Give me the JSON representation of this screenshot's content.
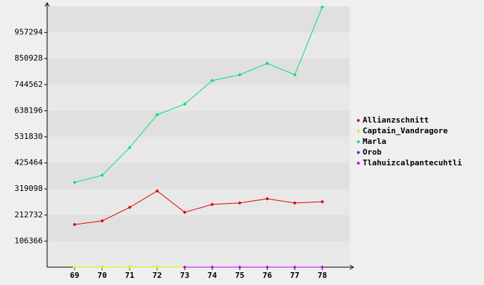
{
  "chart_data": {
    "type": "line",
    "categories": [
      "69",
      "70",
      "71",
      "72",
      "73",
      "74",
      "75",
      "76",
      "77",
      "78"
    ],
    "series": [
      {
        "name": "Allianzschnitt",
        "color": "#e00000",
        "values": [
          174000,
          189000,
          244000,
          311000,
          224000,
          256000,
          262000,
          279000,
          262000,
          267000
        ]
      },
      {
        "name": "Captain_Vandragore",
        "color": "#e8e800",
        "values": [
          0,
          0,
          0,
          0,
          0,
          null,
          null,
          null,
          null,
          null
        ]
      },
      {
        "name": "Marla",
        "color": "#00e070",
        "values": [
          346000,
          375000,
          488000,
          622000,
          665000,
          761000,
          785000,
          831000,
          785000,
          1061000
        ]
      },
      {
        "name": "Orob",
        "color": "#0050d0",
        "values": [
          null,
          null,
          null,
          null,
          null,
          null,
          null,
          null,
          null,
          null
        ]
      },
      {
        "name": "Tlahuizcalpantecuhtli",
        "color": "#c000f0",
        "values": [
          null,
          null,
          null,
          null,
          0,
          0,
          0,
          0,
          0,
          0
        ]
      }
    ],
    "ylim": [
      0,
      1063660
    ],
    "yticks": [
      106366,
      212732,
      319098,
      425464,
      531830,
      638196,
      744562,
      850928,
      957294
    ],
    "grid": true,
    "legend": "right"
  }
}
